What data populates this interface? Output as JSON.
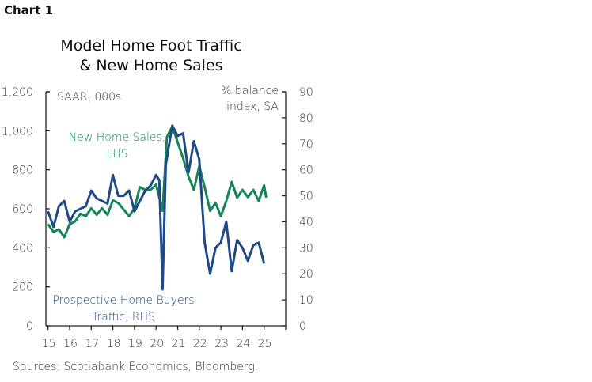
{
  "header": {
    "chart_number": "Chart 1"
  },
  "chart_data": {
    "type": "line",
    "title": [
      "Model Home Foot Traffic",
      "& New Home Sales"
    ],
    "left_axis_label": "SAAR, 000s",
    "right_axis_label": [
      "% balance",
      "index, SA"
    ],
    "left_ylim": [
      0,
      1200
    ],
    "right_ylim": [
      0,
      90
    ],
    "left_ticks": [
      "0",
      "200",
      "400",
      "600",
      "800",
      "1,000",
      "1,200"
    ],
    "left_tick_values": [
      0,
      200,
      400,
      600,
      800,
      1000,
      1200
    ],
    "right_ticks": [
      "0",
      "10",
      "20",
      "30",
      "40",
      "50",
      "60",
      "70",
      "80",
      "90"
    ],
    "right_tick_values": [
      0,
      10,
      20,
      30,
      40,
      50,
      60,
      70,
      80,
      90
    ],
    "x_ticks": [
      "15",
      "16",
      "17",
      "18",
      "19",
      "20",
      "21",
      "22",
      "23",
      "24",
      "25"
    ],
    "x_tick_values": [
      2015,
      2016,
      2017,
      2018,
      2019,
      2020,
      2021,
      2022,
      2023,
      2024,
      2025
    ],
    "xlim": [
      2015,
      2026
    ],
    "grid": false,
    "series": [
      {
        "name": "New Home Sales, LHS",
        "label_lines": [
          "New Home Sales,",
          "LHS"
        ],
        "axis": "left",
        "color": "#17855a",
        "x": [
          2015.0,
          2015.25,
          2015.5,
          2015.75,
          2016.0,
          2016.25,
          2016.5,
          2016.75,
          2017.0,
          2017.25,
          2017.5,
          2017.75,
          2018.0,
          2018.25,
          2018.5,
          2018.75,
          2019.0,
          2019.25,
          2019.5,
          2019.75,
          2020.0,
          2020.3,
          2020.5,
          2020.75,
          2021.0,
          2021.25,
          2021.5,
          2021.75,
          2022.0,
          2022.25,
          2022.5,
          2022.75,
          2023.0,
          2023.25,
          2023.5,
          2023.75,
          2024.0,
          2024.25,
          2024.5,
          2024.75,
          2025.0,
          2025.1
        ],
        "y": [
          521,
          481,
          495,
          454,
          521,
          535,
          575,
          562,
          603,
          569,
          603,
          569,
          643,
          630,
          596,
          562,
          603,
          711,
          697,
          697,
          724,
          590,
          968,
          1022,
          941,
          860,
          765,
          697,
          819,
          711,
          589,
          630,
          562,
          640,
          738,
          657,
          697,
          660,
          697,
          640,
          720,
          657
        ]
      },
      {
        "name": "Prospective Home Buyers Traffic, RHS",
        "label_lines": [
          "Prospective Home Buyers",
          "Traffic, RHS"
        ],
        "axis": "right",
        "color": "#1f4a85",
        "x": [
          2015.0,
          2015.25,
          2015.5,
          2015.75,
          2016.0,
          2016.25,
          2016.5,
          2016.75,
          2017.0,
          2017.25,
          2017.5,
          2017.75,
          2018.0,
          2018.25,
          2018.5,
          2018.75,
          2019.0,
          2019.25,
          2019.5,
          2019.75,
          2020.0,
          2020.15,
          2020.3,
          2020.45,
          2020.75,
          2021.0,
          2021.25,
          2021.5,
          2021.75,
          2022.0,
          2022.25,
          2022.5,
          2022.75,
          2023.0,
          2023.25,
          2023.5,
          2023.75,
          2024.0,
          2024.25,
          2024.5,
          2024.75,
          2025.0
        ],
        "y": [
          44,
          38,
          46,
          48,
          40,
          44,
          45,
          46,
          52,
          49,
          48,
          47,
          58,
          50,
          50,
          52,
          44,
          48,
          52,
          54,
          58,
          56,
          14,
          62,
          77,
          73,
          74,
          59,
          71,
          64,
          32,
          20,
          30,
          32,
          40,
          21,
          33,
          30,
          25,
          31,
          32,
          24
        ]
      }
    ],
    "source": "Sources: Scotiabank Economics, Bloomberg."
  }
}
